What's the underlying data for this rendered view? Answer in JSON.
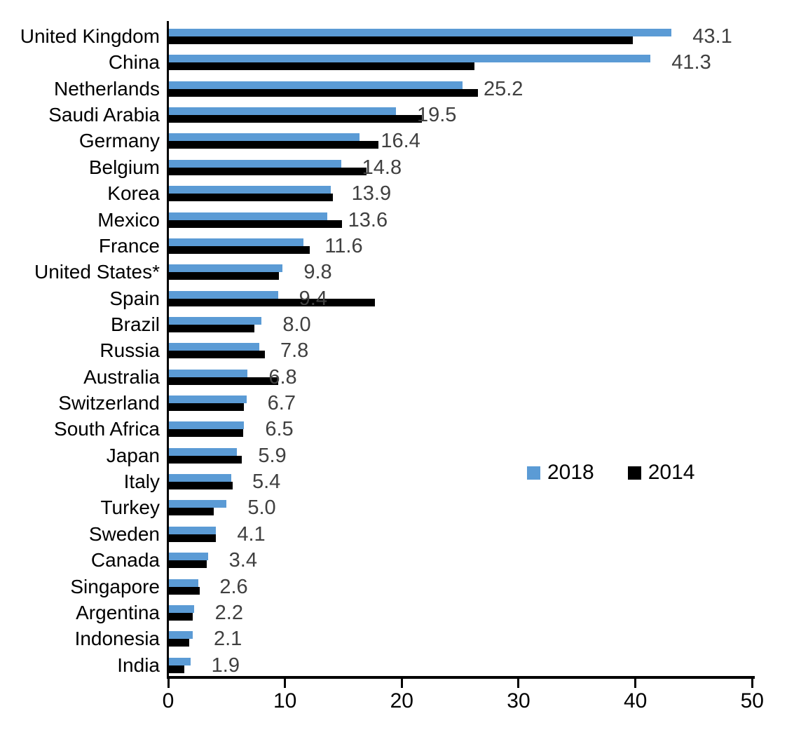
{
  "chart_data": {
    "type": "bar",
    "orientation": "horizontal",
    "title": "",
    "xlabel": "",
    "ylabel": "",
    "grid": false,
    "xlim": [
      0,
      50
    ],
    "x_ticks": [
      0,
      10,
      20,
      30,
      40,
      50
    ],
    "tick_labels": [
      "0",
      "10",
      "20",
      "30",
      "40",
      "50"
    ],
    "legend_position": "center-right",
    "value_labels_series": "2018",
    "value_label_color": "#404040",
    "categories": [
      "United Kingdom",
      "China",
      "Netherlands",
      "Saudi Arabia",
      "Germany",
      "Belgium",
      "Korea",
      "Mexico",
      "France",
      "United States*",
      "Spain",
      "Brazil",
      "Russia",
      "Australia",
      "Switzerland",
      "South Africa",
      "Japan",
      "Italy",
      "Turkey",
      "Sweden",
      "Canada",
      "Singapore",
      "Argentina",
      "Indonesia",
      "India"
    ],
    "series": [
      {
        "name": "2018",
        "color": "#5B9BD5",
        "values": [
          43.1,
          41.3,
          25.2,
          19.5,
          16.4,
          14.8,
          13.9,
          13.6,
          11.6,
          9.8,
          9.4,
          8.0,
          7.8,
          6.8,
          6.7,
          6.5,
          5.9,
          5.4,
          5.0,
          4.1,
          3.4,
          2.6,
          2.2,
          2.1,
          1.9
        ]
      },
      {
        "name": "2014",
        "color": "#000000",
        "values": [
          39.8,
          26.2,
          26.5,
          21.7,
          18.0,
          17.0,
          14.1,
          14.9,
          12.1,
          9.5,
          17.7,
          7.4,
          8.3,
          9.4,
          6.5,
          6.4,
          6.3,
          5.5,
          3.9,
          4.1,
          3.3,
          2.7,
          2.1,
          1.8,
          1.4
        ]
      }
    ],
    "data_labels": [
      "43.1",
      "41.3",
      "25.2",
      "19.5",
      "16.4",
      "14.8",
      "13.9",
      "13.6",
      "11.6",
      "9.8",
      "9.4",
      "8.0",
      "7.8",
      "6.8",
      "6.7",
      "6.5",
      "5.9",
      "5.4",
      "5.0",
      "4.1",
      "3.4",
      "2.6",
      "2.2",
      "2.1",
      "1.9"
    ]
  },
  "legend": {
    "items": [
      {
        "label": "2018",
        "color": "#5B9BD5"
      },
      {
        "label": "2014",
        "color": "#000000"
      }
    ]
  }
}
